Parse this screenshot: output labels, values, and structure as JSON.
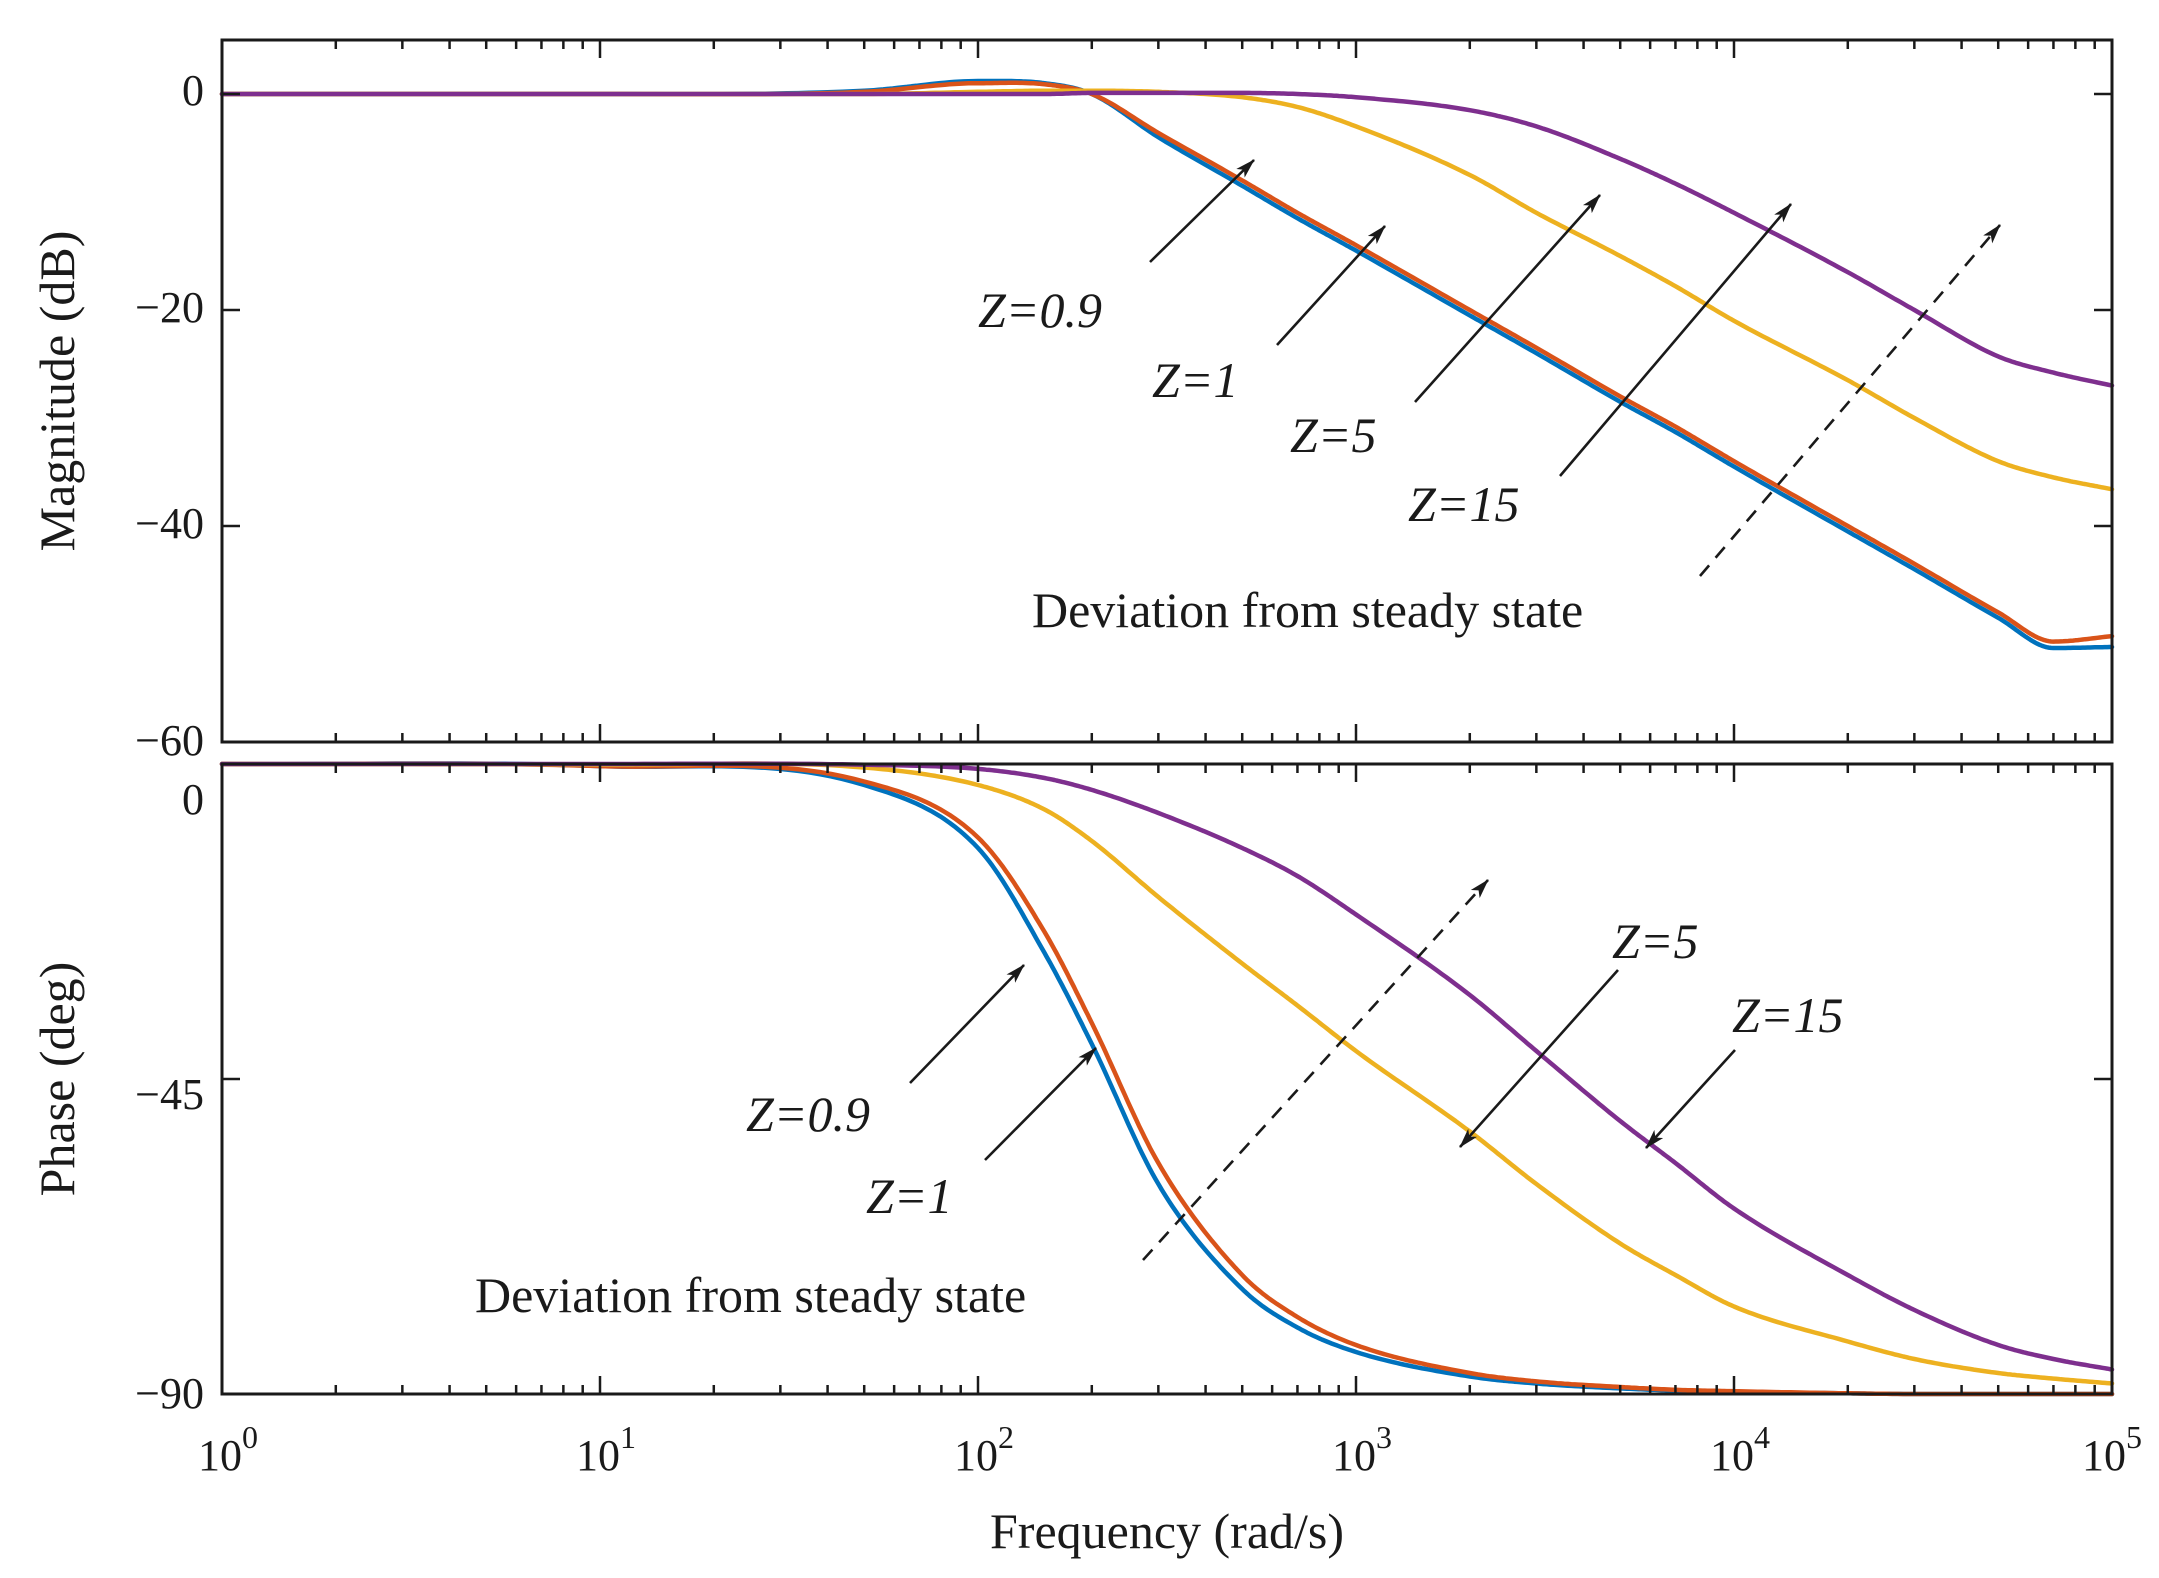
{
  "figure": {
    "xlabel": "Frequency (rad/s)",
    "x_tick_base": "10",
    "x_tick_exponents": [
      "0",
      "1",
      "2",
      "3",
      "4",
      "5"
    ]
  },
  "colors": {
    "z_0_9": "#0072BD",
    "z_1": "#D95319",
    "z_5": "#EDB120",
    "z_15": "#7E2F8E"
  },
  "chart_data": [
    {
      "type": "line",
      "panel": "magnitude",
      "title": "",
      "xlabel": "Frequency (rad/s)",
      "ylabel": "Magnitude (dB)",
      "xscale": "log",
      "xlim": [
        1,
        100000
      ],
      "ylim": [
        -60,
        5
      ],
      "yticks": [
        "0",
        "−20",
        "−40",
        "−60"
      ],
      "grid": false,
      "x": [
        1,
        10,
        50,
        100,
        150,
        200,
        300,
        500,
        700,
        1000,
        2000,
        3000,
        5000,
        7000,
        10000,
        20000,
        30000,
        50000,
        70000,
        100000
      ],
      "series": [
        {
          "name": "Z=0.9",
          "color": "#0072BD",
          "values": [
            0,
            0,
            0.3,
            1.2,
            1.0,
            0,
            -4,
            -8.5,
            -11.5,
            -14.5,
            -20.5,
            -24,
            -28.5,
            -31.3,
            -34.5,
            -40.5,
            -44,
            -48.5,
            -51.3,
            -51.2
          ]
        },
        {
          "name": "Z=1",
          "color": "#D95319",
          "values": [
            0,
            0,
            0.2,
            1.0,
            0.9,
            0,
            -3.6,
            -8,
            -11,
            -14,
            -20,
            -23.5,
            -28,
            -30.8,
            -34,
            -40,
            -43.5,
            -48,
            -50.7,
            -50.2
          ]
        },
        {
          "name": "Z=5",
          "color": "#EDB120",
          "values": [
            0,
            0,
            0,
            0.2,
            0.3,
            0.3,
            0.2,
            -0.3,
            -1.2,
            -3,
            -7.5,
            -11,
            -15,
            -17.8,
            -21,
            -26.5,
            -30,
            -34,
            -35.5,
            -36.6
          ]
        },
        {
          "name": "Z=15",
          "color": "#7E2F8E",
          "values": [
            0,
            0,
            0,
            0,
            0,
            0.1,
            0.1,
            0.1,
            0,
            -0.3,
            -1.5,
            -3,
            -6,
            -8.3,
            -11,
            -16.5,
            -20,
            -24.3,
            -25.8,
            -27
          ]
        }
      ],
      "annotations": [
        {
          "text": "Z=0.9",
          "target": [
            550,
            -7.2
          ]
        },
        {
          "text": "Z=1",
          "target": [
            1150,
            -12.8
          ]
        },
        {
          "text": "Z=5",
          "target": [
            4400,
            -9.7
          ]
        },
        {
          "text": "Z=15",
          "target": [
            14000,
            -10.8
          ]
        },
        {
          "text": "Deviation from steady state",
          "arrow_from": [
            2500,
            -45
          ],
          "arrow_to": [
            52000,
            -12.5
          ],
          "dashed": true
        }
      ]
    },
    {
      "type": "line",
      "panel": "phase",
      "title": "",
      "xlabel": "Frequency (rad/s)",
      "ylabel": "Phase (deg)",
      "xscale": "log",
      "xlim": [
        1,
        100000
      ],
      "ylim": [
        -90,
        0
      ],
      "yticks": [
        "0",
        "−45",
        "−90"
      ],
      "grid": false,
      "x": [
        1,
        10,
        50,
        100,
        150,
        200,
        300,
        500,
        700,
        1000,
        2000,
        3000,
        5000,
        7000,
        10000,
        20000,
        30000,
        50000,
        70000,
        100000
      ],
      "series": [
        {
          "name": "Z=0.9",
          "color": "#0072BD",
          "values": [
            0,
            -0.3,
            -3,
            -12,
            -27,
            -40,
            -60,
            -75,
            -80.5,
            -84,
            -87.5,
            -88.5,
            -89.2,
            -89.5,
            -89.7,
            -89.9,
            -90,
            -90,
            -90,
            -90
          ]
        },
        {
          "name": "Z=1",
          "color": "#D95319",
          "values": [
            0,
            -0.3,
            -2.5,
            -10.5,
            -24,
            -37,
            -57,
            -73,
            -79,
            -83,
            -87,
            -88.2,
            -89,
            -89.4,
            -89.6,
            -89.9,
            -90,
            -90,
            -90,
            -90
          ]
        },
        {
          "name": "Z=5",
          "color": "#EDB120",
          "values": [
            0,
            -0.1,
            -0.5,
            -3,
            -6.5,
            -11,
            -19,
            -28.5,
            -34.5,
            -41,
            -52.5,
            -60,
            -68.5,
            -73,
            -77.5,
            -82.5,
            -85,
            -87,
            -87.8,
            -88.5
          ]
        },
        {
          "name": "Z=15",
          "color": "#7E2F8E",
          "values": [
            0,
            0,
            -0.1,
            -0.7,
            -2,
            -3.7,
            -7,
            -12,
            -16,
            -21.5,
            -33,
            -41,
            -51,
            -57,
            -63.5,
            -73,
            -78,
            -83,
            -85,
            -86.5
          ]
        }
      ],
      "annotations": [
        {
          "text": "Z=0.9",
          "target": [
            130,
            -25.5
          ]
        },
        {
          "text": "Z=1",
          "target": [
            210,
            -38
          ]
        },
        {
          "text": "Z=5",
          "target": [
            1800,
            -52
          ]
        },
        {
          "text": "Z=15",
          "target": [
            5600,
            -52.5
          ]
        },
        {
          "text": "Deviation from steady state",
          "arrow_from": [
            400,
            -69
          ],
          "arrow_to": [
            2400,
            -12.5
          ],
          "dashed": true
        }
      ]
    }
  ]
}
